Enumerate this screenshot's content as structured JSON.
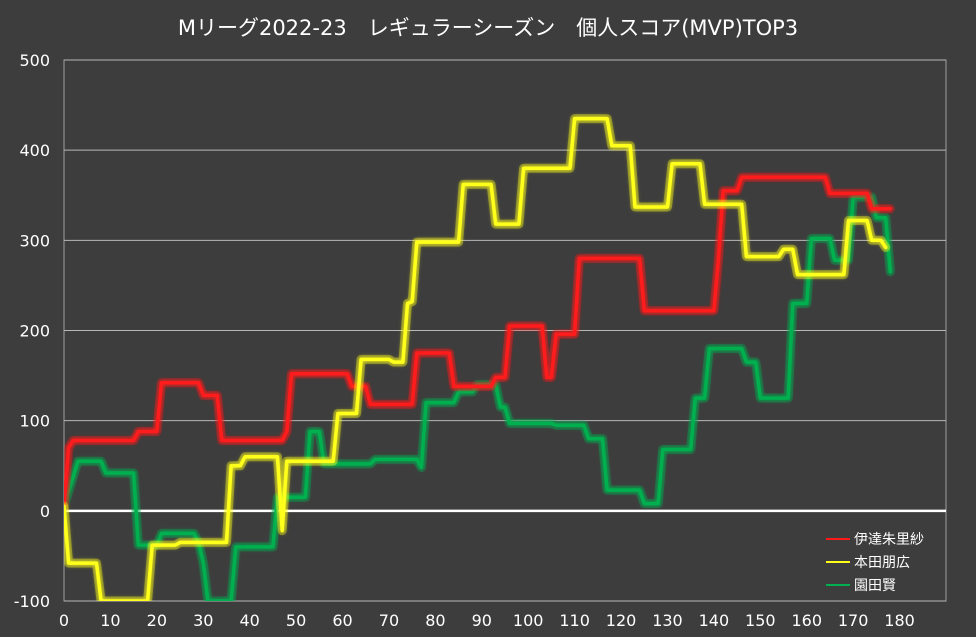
{
  "chart_data": {
    "type": "line",
    "title": "Mリーグ2022-23　レギュラーシーズン　個人スコア(MVP)TOP3",
    "xlabel": "",
    "ylabel": "",
    "xlim": [
      0,
      190
    ],
    "ylim": [
      -100,
      500
    ],
    "x_ticks": [
      0,
      10,
      20,
      30,
      40,
      50,
      60,
      70,
      80,
      90,
      100,
      110,
      120,
      130,
      140,
      150,
      160,
      170,
      180
    ],
    "y_ticks": [
      -100,
      0,
      100,
      200,
      300,
      400,
      500
    ],
    "grid": true,
    "legend_position": "bottom-right",
    "background_color": "#3d3d3d",
    "series": [
      {
        "name": "伊達朱里紗",
        "color": "#ff1a1a",
        "points": [
          [
            0,
            5
          ],
          [
            1,
            70
          ],
          [
            2,
            78
          ],
          [
            15,
            78
          ],
          [
            16,
            88
          ],
          [
            20,
            88
          ],
          [
            21,
            142
          ],
          [
            29,
            142
          ],
          [
            30,
            128
          ],
          [
            33,
            128
          ],
          [
            34,
            78
          ],
          [
            47,
            78
          ],
          [
            48,
            88
          ],
          [
            49,
            152
          ],
          [
            61,
            152
          ],
          [
            62,
            138
          ],
          [
            65,
            138
          ],
          [
            66,
            118
          ],
          [
            75,
            118
          ],
          [
            76,
            175
          ],
          [
            83,
            175
          ],
          [
            84,
            138
          ],
          [
            92,
            138
          ],
          [
            93,
            148
          ],
          [
            95,
            148
          ],
          [
            96,
            205
          ],
          [
            103,
            205
          ],
          [
            104,
            148
          ],
          [
            105,
            148
          ],
          [
            106,
            196
          ],
          [
            110,
            196
          ],
          [
            111,
            280
          ],
          [
            124,
            280
          ],
          [
            125,
            222
          ],
          [
            140,
            222
          ],
          [
            141,
            280
          ],
          [
            142,
            355
          ],
          [
            145,
            355
          ],
          [
            146,
            370
          ],
          [
            164,
            370
          ],
          [
            165,
            352
          ],
          [
            173,
            352
          ],
          [
            174,
            335
          ],
          [
            178,
            335
          ]
        ]
      },
      {
        "name": "本田朋広",
        "color": "#ffff1a",
        "points": [
          [
            0,
            5
          ],
          [
            1,
            -58
          ],
          [
            7,
            -58
          ],
          [
            8,
            -100
          ],
          [
            11,
            -100
          ],
          [
            18,
            -100
          ],
          [
            19,
            -38
          ],
          [
            24,
            -38
          ],
          [
            25,
            -35
          ],
          [
            35,
            -35
          ],
          [
            36,
            50
          ],
          [
            38,
            50
          ],
          [
            39,
            60
          ],
          [
            46,
            60
          ],
          [
            47,
            -22
          ],
          [
            48,
            55
          ],
          [
            58,
            55
          ],
          [
            59,
            108
          ],
          [
            63,
            108
          ],
          [
            64,
            168
          ],
          [
            70,
            168
          ],
          [
            71,
            165
          ],
          [
            73,
            165
          ],
          [
            74,
            230
          ],
          [
            75,
            232
          ],
          [
            76,
            298
          ],
          [
            85,
            298
          ],
          [
            86,
            362
          ],
          [
            92,
            362
          ],
          [
            93,
            318
          ],
          [
            98,
            318
          ],
          [
            99,
            380
          ],
          [
            109,
            380
          ],
          [
            110,
            435
          ],
          [
            117,
            435
          ],
          [
            118,
            405
          ],
          [
            122,
            405
          ],
          [
            123,
            337
          ],
          [
            130,
            337
          ],
          [
            131,
            385
          ],
          [
            137,
            385
          ],
          [
            138,
            340
          ],
          [
            146,
            340
          ],
          [
            147,
            282
          ],
          [
            154,
            282
          ],
          [
            155,
            290
          ],
          [
            157,
            290
          ],
          [
            158,
            262
          ],
          [
            168,
            262
          ],
          [
            169,
            322
          ],
          [
            173,
            322
          ],
          [
            174,
            300
          ],
          [
            176,
            300
          ],
          [
            177,
            292
          ]
        ]
      },
      {
        "name": "園田賢",
        "color": "#00b050",
        "points": [
          [
            0,
            5
          ],
          [
            3,
            55
          ],
          [
            8,
            55
          ],
          [
            9,
            42
          ],
          [
            15,
            42
          ],
          [
            16,
            -38
          ],
          [
            20,
            -38
          ],
          [
            21,
            -25
          ],
          [
            28,
            -25
          ],
          [
            29,
            -35
          ],
          [
            30,
            -58
          ],
          [
            31,
            -100
          ],
          [
            36,
            -100
          ],
          [
            37,
            -40
          ],
          [
            45,
            -40
          ],
          [
            46,
            15
          ],
          [
            52,
            15
          ],
          [
            53,
            88
          ],
          [
            55,
            88
          ],
          [
            56,
            52
          ],
          [
            66,
            52
          ],
          [
            67,
            57
          ],
          [
            76,
            57
          ],
          [
            77,
            48
          ],
          [
            78,
            120
          ],
          [
            84,
            120
          ],
          [
            85,
            132
          ],
          [
            88,
            132
          ],
          [
            89,
            140
          ],
          [
            93,
            140
          ],
          [
            94,
            115
          ],
          [
            95,
            115
          ],
          [
            96,
            97
          ],
          [
            105,
            97
          ],
          [
            106,
            95
          ],
          [
            112,
            95
          ],
          [
            113,
            80
          ],
          [
            116,
            80
          ],
          [
            117,
            23
          ],
          [
            124,
            23
          ],
          [
            125,
            8
          ],
          [
            128,
            8
          ],
          [
            129,
            68
          ],
          [
            135,
            68
          ],
          [
            136,
            125
          ],
          [
            138,
            125
          ],
          [
            139,
            180
          ],
          [
            146,
            180
          ],
          [
            147,
            165
          ],
          [
            149,
            165
          ],
          [
            150,
            125
          ],
          [
            156,
            125
          ],
          [
            157,
            230
          ],
          [
            160,
            230
          ],
          [
            161,
            302
          ],
          [
            165,
            302
          ],
          [
            166,
            278
          ],
          [
            169,
            278
          ],
          [
            170,
            348
          ],
          [
            174,
            348
          ],
          [
            175,
            325
          ],
          [
            177,
            325
          ],
          [
            178,
            265
          ]
        ]
      }
    ]
  }
}
